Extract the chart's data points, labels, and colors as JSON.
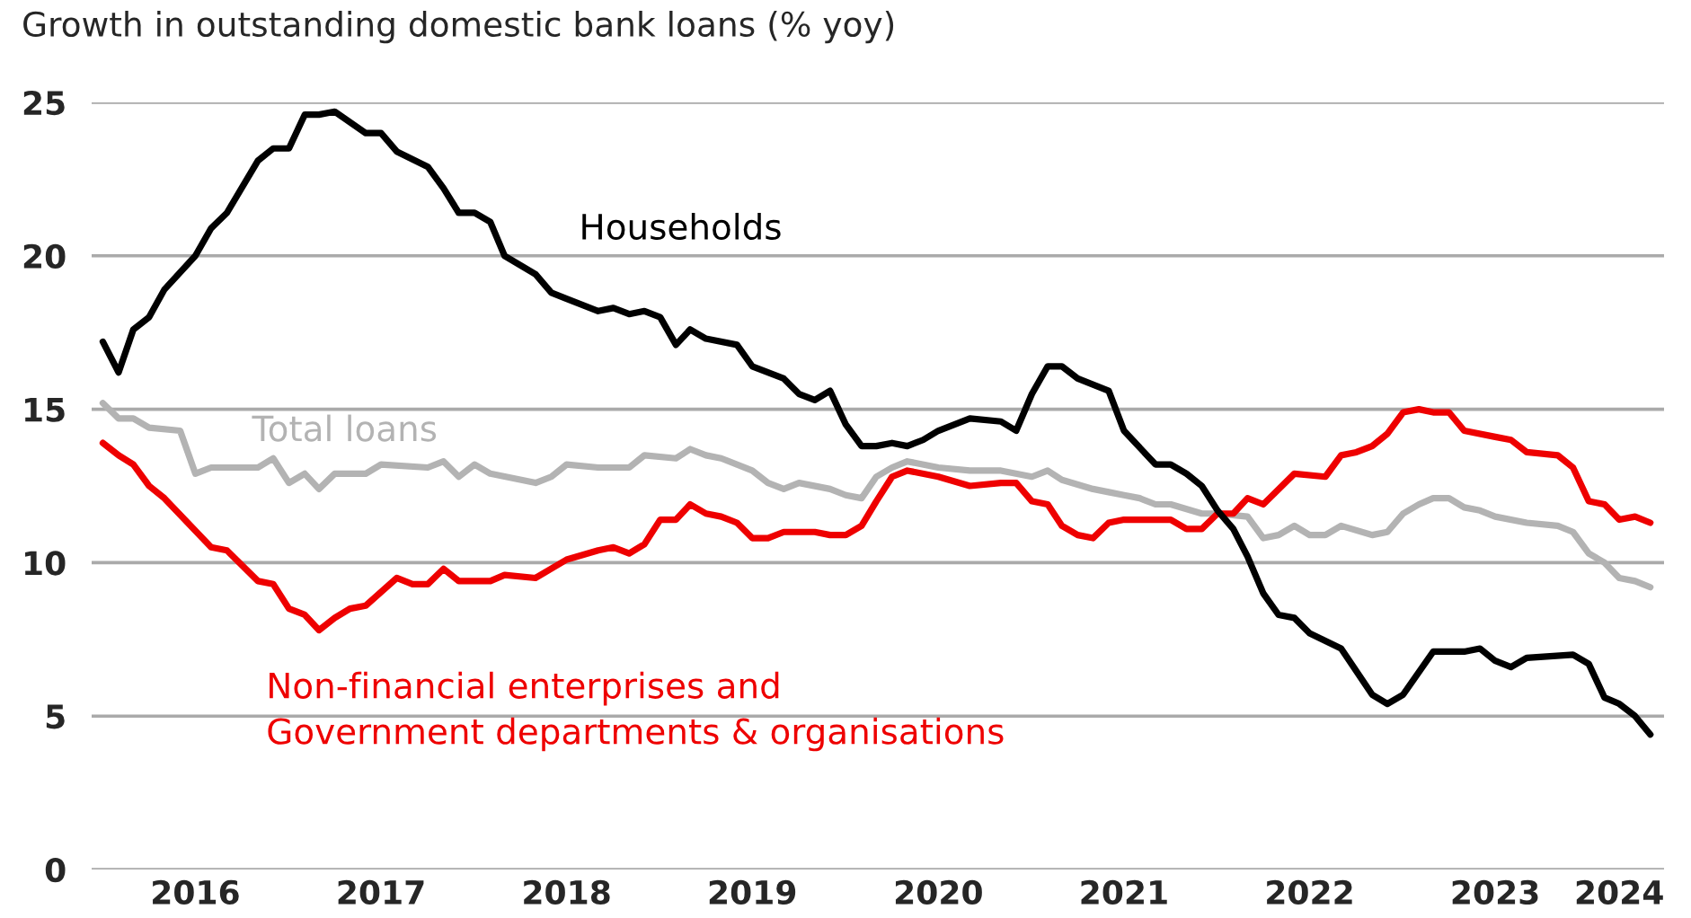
{
  "chart_data": {
    "type": "line",
    "title": "Growth in outstanding domestic bank loans (% yoy)",
    "xlim": [
      "2015-12-10",
      "2024-05-28"
    ],
    "ylim": [
      0,
      25
    ],
    "yticks": [
      0,
      5,
      10,
      15,
      20,
      25
    ],
    "xticks": [
      {
        "value": "2016-07",
        "label": "2016"
      },
      {
        "value": "2017-07",
        "label": "2017"
      },
      {
        "value": "2018-07",
        "label": "2018"
      },
      {
        "value": "2019-07",
        "label": "2019"
      },
      {
        "value": "2020-07",
        "label": "2020"
      },
      {
        "value": "2021-07",
        "label": "2021"
      },
      {
        "value": "2022-07",
        "label": "2022"
      },
      {
        "value": "2023-07",
        "label": "2023"
      },
      {
        "value": "2024-03",
        "label": "2024"
      }
    ],
    "grid": "y",
    "legend": false,
    "marker": "none",
    "line_style": "solid",
    "series": [
      {
        "name": "Total loans",
        "color": "#b3b3b3",
        "x": [
          "2016-01",
          "2016-02",
          "2016-03",
          "2016-04",
          "2016-06",
          "2016-07",
          "2016-08",
          "2016-11",
          "2016-12",
          "2017-01",
          "2017-02",
          "2017-03",
          "2017-04",
          "2017-06",
          "2017-07",
          "2017-10",
          "2017-11",
          "2017-12",
          "2018-01",
          "2018-02",
          "2018-05",
          "2018-06",
          "2018-07",
          "2018-09",
          "2018-11",
          "2018-12",
          "2019-02",
          "2019-03",
          "2019-04",
          "2019-05",
          "2019-07",
          "2019-08",
          "2019-09",
          "2019-10",
          "2019-12",
          "2020-01",
          "2020-02",
          "2020-03",
          "2020-04",
          "2020-05",
          "2020-07",
          "2020-09",
          "2020-11",
          "2021-01",
          "2021-02",
          "2021-03",
          "2021-05",
          "2021-06",
          "2021-07",
          "2021-08",
          "2021-09",
          "2021-10",
          "2021-12",
          "2022-01",
          "2022-03",
          "2022-04",
          "2022-05",
          "2022-06",
          "2022-07",
          "2022-08",
          "2022-09",
          "2022-11",
          "2022-12",
          "2023-01",
          "2023-02",
          "2023-03",
          "2023-04",
          "2023-05",
          "2023-06",
          "2023-07",
          "2023-09",
          "2023-11",
          "2023-12",
          "2024-01",
          "2024-02",
          "2024-03",
          "2024-04",
          "2024-05"
        ],
        "values": [
          15.2,
          14.7,
          14.7,
          14.4,
          14.3,
          12.9,
          13.1,
          13.1,
          13.4,
          12.6,
          12.9,
          12.4,
          12.9,
          12.9,
          13.2,
          13.1,
          13.3,
          12.8,
          13.2,
          12.9,
          12.6,
          12.8,
          13.2,
          13.1,
          13.1,
          13.5,
          13.4,
          13.7,
          13.5,
          13.4,
          13.0,
          12.6,
          12.4,
          12.6,
          12.4,
          12.2,
          12.1,
          12.8,
          13.1,
          13.3,
          13.1,
          13.0,
          13.0,
          12.8,
          13.0,
          12.7,
          12.4,
          12.3,
          12.2,
          12.1,
          11.9,
          11.9,
          11.6,
          11.6,
          11.5,
          10.8,
          10.9,
          11.2,
          10.9,
          10.9,
          11.2,
          10.9,
          11.0,
          11.6,
          11.9,
          12.1,
          12.1,
          11.8,
          11.7,
          11.5,
          11.3,
          11.2,
          11.0,
          10.3,
          10.0,
          9.5,
          9.4,
          9.2
        ]
      },
      {
        "name": "Non-financial enterprises and\nGovernment departments & organisations",
        "color": "#ee0000",
        "x": [
          "2016-01",
          "2016-02",
          "2016-03",
          "2016-04",
          "2016-05",
          "2016-08",
          "2016-09",
          "2016-11",
          "2016-12",
          "2017-01",
          "2017-02",
          "2017-03",
          "2017-04",
          "2017-05",
          "2017-06",
          "2017-08",
          "2017-09",
          "2017-10",
          "2017-11",
          "2017-12",
          "2018-02",
          "2018-03",
          "2018-05",
          "2018-07",
          "2018-09",
          "2018-10",
          "2018-11",
          "2018-12",
          "2019-01",
          "2019-02",
          "2019-03",
          "2019-04",
          "2019-05",
          "2019-06",
          "2019-07",
          "2019-08",
          "2019-09",
          "2019-11",
          "2019-12",
          "2020-01",
          "2020-02",
          "2020-03",
          "2020-04",
          "2020-05",
          "2020-07",
          "2020-09",
          "2020-11",
          "2020-12",
          "2021-01",
          "2021-02",
          "2021-03",
          "2021-04",
          "2021-05",
          "2021-06",
          "2021-07",
          "2021-08",
          "2021-10",
          "2021-11",
          "2021-12",
          "2022-01",
          "2022-02",
          "2022-03",
          "2022-04",
          "2022-06",
          "2022-08",
          "2022-09",
          "2022-10",
          "2022-11",
          "2022-12",
          "2023-01",
          "2023-02",
          "2023-03",
          "2023-04",
          "2023-05",
          "2023-07",
          "2023-08",
          "2023-09",
          "2023-11",
          "2023-12",
          "2024-01",
          "2024-02",
          "2024-03",
          "2024-04",
          "2024-05"
        ],
        "values": [
          13.9,
          13.5,
          13.2,
          12.5,
          12.1,
          10.5,
          10.4,
          9.4,
          9.3,
          8.5,
          8.3,
          7.8,
          8.2,
          8.5,
          8.6,
          9.5,
          9.3,
          9.3,
          9.8,
          9.4,
          9.4,
          9.6,
          9.5,
          10.1,
          10.4,
          10.5,
          10.3,
          10.6,
          11.4,
          11.4,
          11.9,
          11.6,
          11.5,
          11.3,
          10.8,
          10.8,
          11.0,
          11.0,
          10.9,
          10.9,
          11.2,
          12.0,
          12.8,
          13.0,
          12.8,
          12.5,
          12.6,
          12.6,
          12.0,
          11.9,
          11.2,
          10.9,
          10.8,
          11.3,
          11.4,
          11.4,
          11.4,
          11.1,
          11.1,
          11.6,
          11.6,
          12.1,
          11.9,
          12.9,
          12.8,
          13.5,
          13.6,
          13.8,
          14.2,
          14.9,
          15.0,
          14.9,
          14.9,
          14.3,
          14.1,
          14.0,
          13.6,
          13.5,
          13.1,
          12.0,
          11.9,
          11.4,
          11.5,
          11.3
        ]
      },
      {
        "name": "Households",
        "color": "#000000",
        "x": [
          "2016-01",
          "2016-02",
          "2016-03",
          "2016-04",
          "2016-05",
          "2016-07",
          "2016-08",
          "2016-09",
          "2016-11",
          "2016-12",
          "2017-01",
          "2017-02",
          "2017-03",
          "2017-04",
          "2017-06",
          "2017-07",
          "2017-08",
          "2017-10",
          "2017-11",
          "2017-12",
          "2018-01",
          "2018-02",
          "2018-03",
          "2018-05",
          "2018-06",
          "2018-07",
          "2018-09",
          "2018-10",
          "2018-11",
          "2018-12",
          "2019-01",
          "2019-02",
          "2019-03",
          "2019-04",
          "2019-06",
          "2019-07",
          "2019-09",
          "2019-10",
          "2019-11",
          "2019-12",
          "2020-01",
          "2020-02",
          "2020-03",
          "2020-04",
          "2020-05",
          "2020-06",
          "2020-07",
          "2020-09",
          "2020-11",
          "2020-12",
          "2021-01",
          "2021-02",
          "2021-03",
          "2021-04",
          "2021-06",
          "2021-07",
          "2021-09",
          "2021-10",
          "2021-11",
          "2021-12",
          "2022-01",
          "2022-02",
          "2022-03",
          "2022-04",
          "2022-05",
          "2022-06",
          "2022-07",
          "2022-09",
          "2022-11",
          "2022-12",
          "2023-01",
          "2023-03",
          "2023-05",
          "2023-06",
          "2023-07",
          "2023-08",
          "2023-09",
          "2023-12",
          "2024-01",
          "2024-02",
          "2024-03",
          "2024-04",
          "2024-05"
        ],
        "values": [
          17.2,
          16.2,
          17.6,
          18.0,
          18.9,
          20.0,
          20.9,
          21.4,
          23.1,
          23.5,
          23.5,
          24.6,
          24.6,
          24.7,
          24.0,
          24.0,
          23.4,
          22.9,
          22.2,
          21.4,
          21.4,
          21.1,
          20.0,
          19.4,
          18.8,
          18.6,
          18.2,
          18.3,
          18.1,
          18.2,
          18.0,
          17.1,
          17.6,
          17.3,
          17.1,
          16.4,
          16.0,
          15.5,
          15.3,
          15.6,
          14.5,
          13.8,
          13.8,
          13.9,
          13.8,
          14.0,
          14.3,
          14.7,
          14.6,
          14.3,
          15.5,
          16.4,
          16.4,
          16.0,
          15.6,
          14.3,
          13.2,
          13.2,
          12.9,
          12.5,
          11.7,
          11.1,
          10.2,
          9.0,
          8.3,
          8.2,
          7.7,
          7.2,
          5.7,
          5.4,
          5.7,
          7.1,
          7.1,
          7.2,
          6.8,
          6.6,
          6.9,
          7.0,
          6.7,
          5.6,
          5.4,
          5.0,
          4.4
        ]
      }
    ]
  }
}
